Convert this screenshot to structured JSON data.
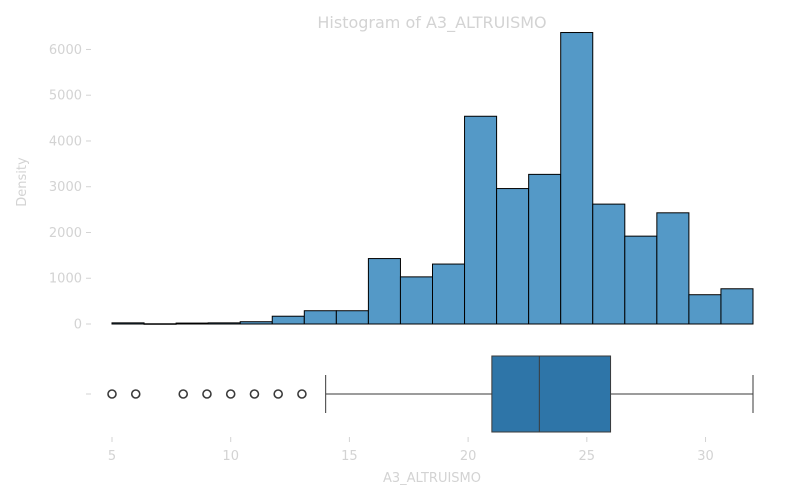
{
  "chart_data": [
    {
      "type": "bar",
      "title": "Histogram of A3_ALTRUISMO",
      "ylabel": "Density",
      "xlabel": "",
      "xlim": [
        5,
        32
      ],
      "ylim": [
        0,
        6600
      ],
      "yticks": [
        0,
        1000,
        2000,
        3000,
        4000,
        5000,
        6000
      ],
      "bar_color": "#5499c7",
      "edge_color": "#000000",
      "bins": [
        {
          "start": 5.0,
          "end": 6.35,
          "value": 25
        },
        {
          "start": 6.35,
          "end": 7.7,
          "value": 5
        },
        {
          "start": 7.7,
          "end": 9.05,
          "value": 20
        },
        {
          "start": 9.05,
          "end": 10.4,
          "value": 25
        },
        {
          "start": 10.4,
          "end": 11.75,
          "value": 50
        },
        {
          "start": 11.75,
          "end": 13.1,
          "value": 170
        },
        {
          "start": 13.1,
          "end": 14.45,
          "value": 290
        },
        {
          "start": 14.45,
          "end": 15.8,
          "value": 290
        },
        {
          "start": 15.8,
          "end": 17.15,
          "value": 1430
        },
        {
          "start": 17.15,
          "end": 18.5,
          "value": 1030
        },
        {
          "start": 18.5,
          "end": 19.85,
          "value": 1310
        },
        {
          "start": 19.85,
          "end": 21.2,
          "value": 4540
        },
        {
          "start": 21.2,
          "end": 22.55,
          "value": 2960
        },
        {
          "start": 22.55,
          "end": 23.9,
          "value": 3270
        },
        {
          "start": 23.9,
          "end": 25.25,
          "value": 6370
        },
        {
          "start": 25.25,
          "end": 26.6,
          "value": 2620
        },
        {
          "start": 26.6,
          "end": 27.95,
          "value": 1920
        },
        {
          "start": 27.95,
          "end": 29.3,
          "value": 2430
        },
        {
          "start": 29.3,
          "end": 30.65,
          "value": 640
        },
        {
          "start": 30.65,
          "end": 32.0,
          "value": 770
        }
      ]
    },
    {
      "type": "box",
      "xlabel": "A3_ALTRUISMO",
      "xlim": [
        5,
        32
      ],
      "xticks": [
        5,
        10,
        15,
        20,
        25,
        30
      ],
      "ytick_label": "-",
      "box_color": "#2e75a8",
      "whisker_low": 14,
      "q1": 21,
      "median": 23,
      "q3": 26,
      "whisker_high": 32,
      "outliers": [
        5,
        6,
        8,
        9,
        10,
        11,
        12,
        13
      ]
    }
  ]
}
